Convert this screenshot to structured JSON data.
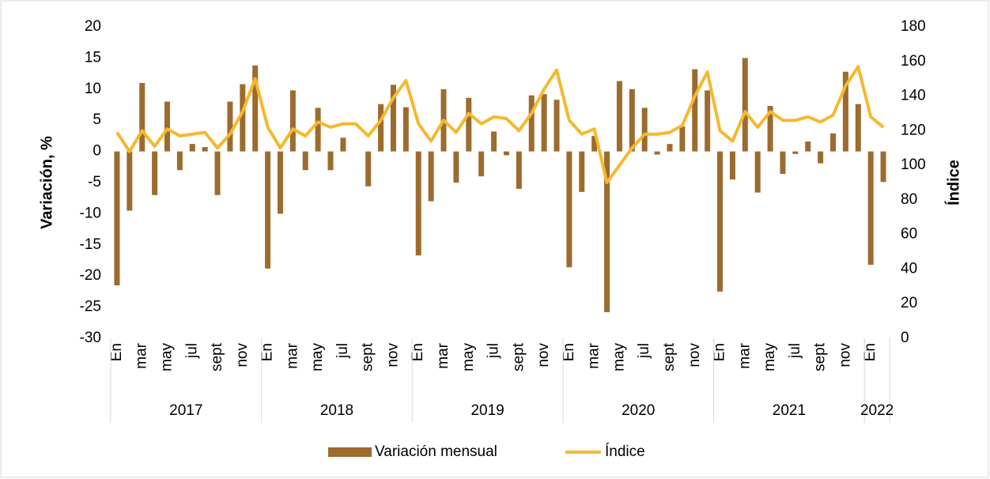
{
  "chart_data": {
    "type": "bar-line",
    "y_label": "Variación, %",
    "y2_label": "Índice",
    "categories": [
      "En",
      null,
      "mar",
      null,
      "may",
      null,
      "jul",
      null,
      "sept",
      null,
      "nov",
      null,
      "En",
      null,
      "mar",
      null,
      "may",
      null,
      "jul",
      null,
      "sept",
      null,
      "nov",
      null,
      "En",
      null,
      "mar",
      null,
      "may",
      null,
      "jul",
      null,
      "sept",
      null,
      "nov",
      null,
      "En",
      null,
      "mar",
      null,
      "may",
      null,
      "jul",
      null,
      "sept",
      null,
      "nov",
      null,
      "En",
      null,
      "mar",
      null,
      "may",
      null,
      "jul",
      null,
      "sept",
      null,
      "nov",
      null,
      "En",
      null
    ],
    "groups": [
      "2017",
      "2018",
      "2019",
      "2020",
      "2021",
      "2022"
    ],
    "series": [
      {
        "name": "Variación mensual",
        "color": "#9c6b2e",
        "type": "bar",
        "values": [
          -21.5,
          -9.5,
          11,
          -7,
          8,
          -3,
          1.2,
          0.7,
          -7,
          8,
          10.8,
          13.8,
          -18.8,
          -10,
          9.8,
          -3,
          7,
          -3,
          2.2,
          0,
          -5.6,
          7.6,
          10.7,
          7.1,
          -16.7,
          -8,
          10,
          -5,
          8.6,
          -4,
          3.2,
          -0.6,
          -6,
          9,
          9.2,
          8.3,
          -18.6,
          -6.5,
          2.5,
          -25.8,
          11.3,
          10,
          7,
          -0.5,
          1.2,
          4,
          13.2,
          9.8,
          -22.5,
          -4.5,
          15,
          -6.6,
          7.3,
          -3.6,
          -0.4,
          1.6,
          -1.9,
          2.9,
          12.8,
          7.6,
          -18.2,
          -4.9
        ]
      },
      {
        "name": "Índice",
        "color": "#f5b82e",
        "type": "line",
        "axis": "y2",
        "values": [
          119,
          108,
          120,
          111,
          121,
          117,
          118,
          119,
          110,
          118,
          131,
          150,
          122,
          110,
          121,
          117,
          125,
          122,
          124,
          124,
          117,
          126,
          139,
          149,
          124,
          114,
          126,
          119,
          130,
          124,
          128,
          127,
          120,
          130,
          144,
          155,
          126,
          118,
          121,
          90,
          100,
          110,
          118,
          118,
          119,
          123,
          140,
          154,
          120,
          114,
          131,
          122,
          131,
          126,
          126,
          128,
          125,
          129,
          146,
          157,
          128,
          122
        ]
      }
    ],
    "ylim": [
      -30,
      20
    ],
    "yticks": [
      -30,
      -25,
      -20,
      -15,
      -10,
      -5,
      0,
      5,
      10,
      15,
      20
    ],
    "y2lim": [
      0,
      180
    ],
    "y2ticks": [
      0,
      20,
      40,
      60,
      80,
      100,
      120,
      140,
      160,
      180
    ],
    "legend": "bottom"
  }
}
